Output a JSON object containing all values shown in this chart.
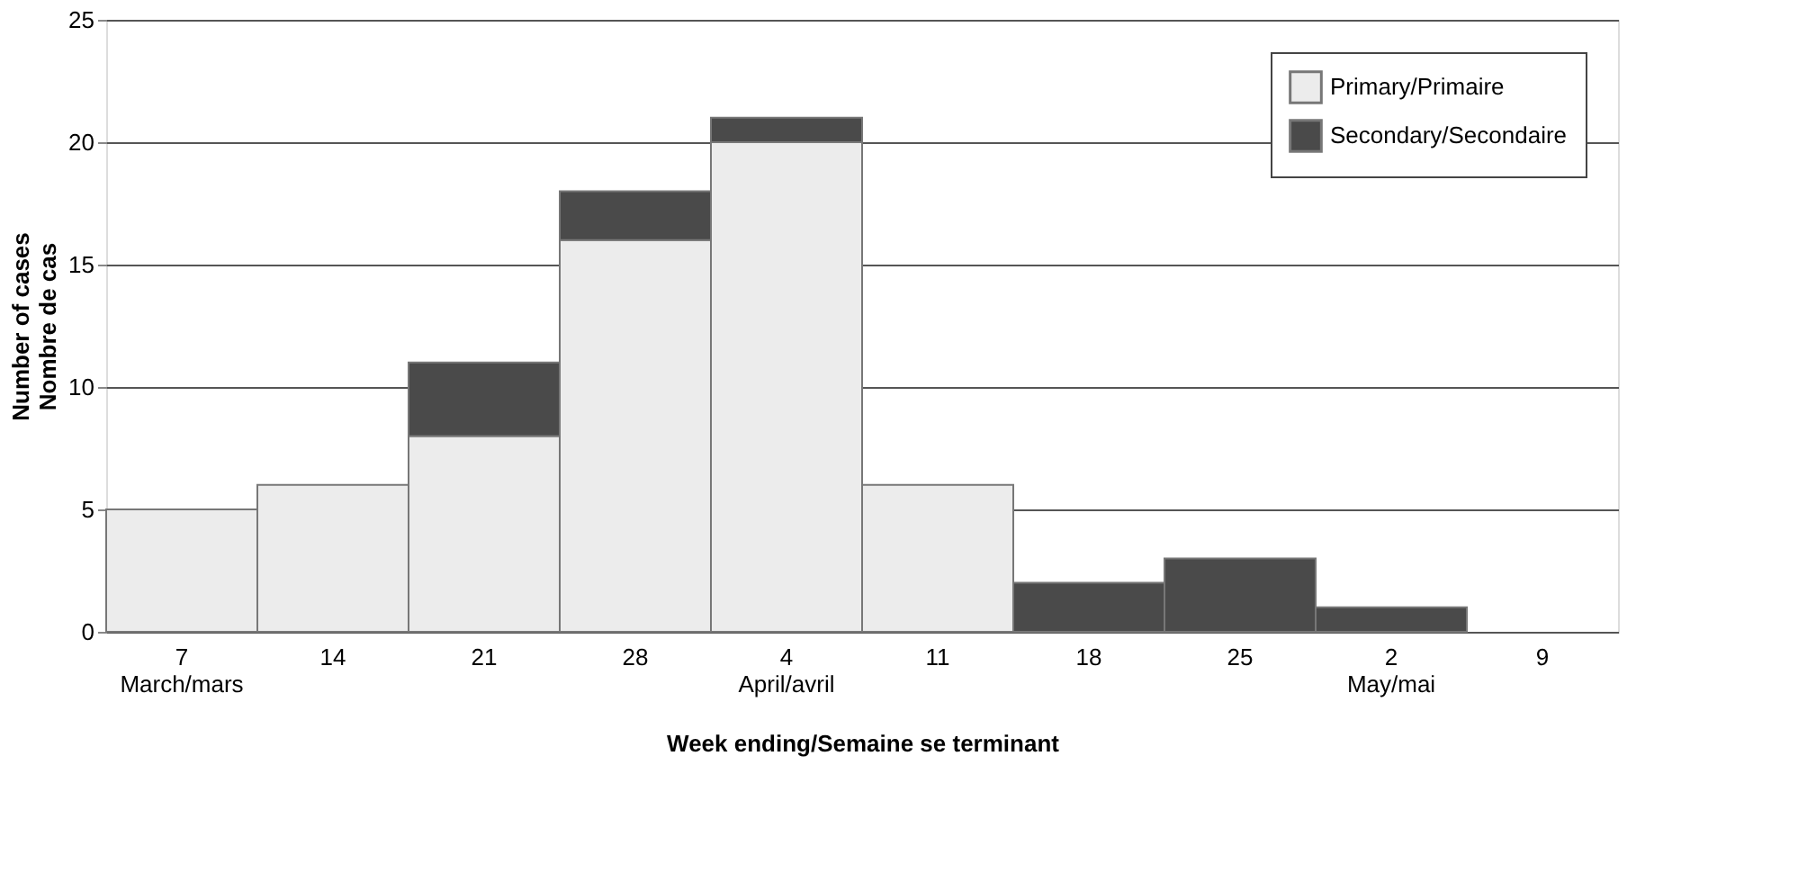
{
  "chart_data": {
    "type": "bar",
    "stacked": true,
    "categories": [
      "7\nMarch/mars",
      "14",
      "21",
      "28",
      "4\nApril/avril",
      "11",
      "18",
      "25",
      "2\nMay/mai",
      "9"
    ],
    "series": [
      {
        "name": "Primary/Primaire",
        "color": "#ececec",
        "values": [
          5,
          6,
          8,
          16,
          20,
          6,
          0,
          0,
          0,
          0
        ]
      },
      {
        "name": "Secondary/Secondaire",
        "color": "#4a4a4a",
        "values": [
          0,
          0,
          3,
          2,
          1,
          0,
          2,
          3,
          1,
          0
        ]
      }
    ],
    "xlabel": "Week ending/Semaine se terminant",
    "ylabel": "Number of cases\nNombre de cas",
    "ylim": [
      0,
      25
    ],
    "yticks": [
      0,
      5,
      10,
      15,
      20,
      25
    ],
    "grid": "y",
    "legend": "top right"
  }
}
